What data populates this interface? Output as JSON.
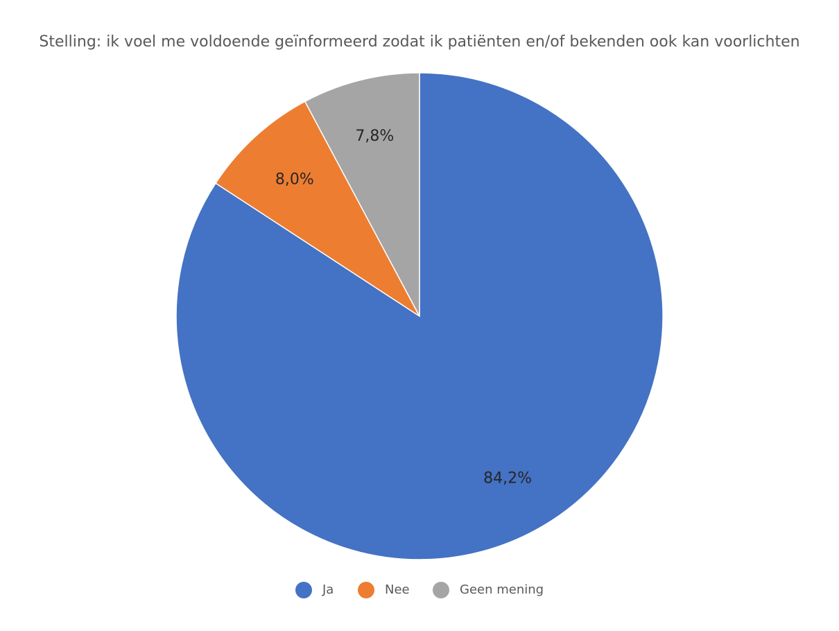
{
  "chart_data": {
    "type": "pie",
    "title": "Stelling: ik voel me voldoende geïnformeerd zodat ik patiënten en/of bekenden ook kan voorlichten",
    "categories": [
      "Ja",
      "Nee",
      "Geen mening"
    ],
    "values": [
      84.2,
      8.0,
      7.8
    ],
    "value_labels": [
      "84,2%",
      "8,0%",
      "7,8%"
    ],
    "colors": [
      "#4472c4",
      "#ed7d31",
      "#a5a5a5"
    ],
    "legend": "bottom"
  }
}
